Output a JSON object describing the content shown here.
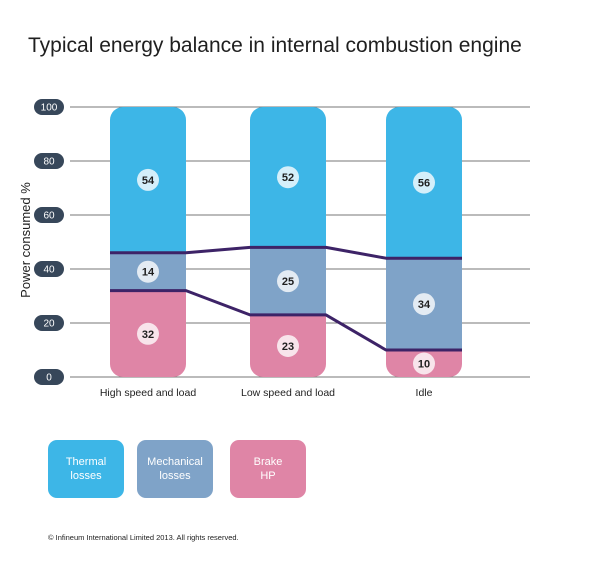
{
  "chart_data": {
    "type": "bar",
    "stacked": true,
    "title": "Typical energy balance in internal combustion engine",
    "xlabel": "",
    "ylabel": "Power consumed %",
    "ylim": [
      0,
      100
    ],
    "yticks": [
      "0",
      "20",
      "40",
      "60",
      "80",
      "100"
    ],
    "grid": true,
    "categories": [
      "High speed and load",
      "Low speed and load",
      "Idle"
    ],
    "series": [
      {
        "name": "Brake\nHP",
        "values": [
          32,
          23,
          10
        ],
        "color": "#df85a6"
      },
      {
        "name": "Mechanical\nlosses",
        "values": [
          14,
          25,
          34
        ],
        "color": "#7fa3c8"
      },
      {
        "name": "Thermal\nlosses",
        "values": [
          54,
          52,
          56
        ],
        "color": "#3db6e7"
      }
    ],
    "legend": [
      {
        "label": "Thermal\nlosses",
        "color": "#3db6e7"
      },
      {
        "label": "Mechanical\nlosses",
        "color": "#7fa3c8"
      },
      {
        "label": "Brake\nHP",
        "color": "#df85a6"
      }
    ],
    "legend_position": "bottom-left",
    "connector_color": "#3d2367"
  },
  "footer": {
    "copyright": "© Infineum International Limited 2013. All rights reserved."
  }
}
